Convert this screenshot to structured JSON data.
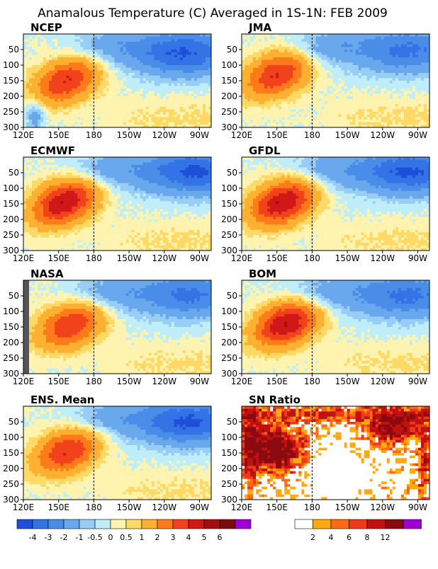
{
  "title": "Anamalous Temperature (C) Averaged in 1S-1N: FEB 2009",
  "colors": {
    "anom": [
      "#1f4fd8",
      "#3373e6",
      "#4a8de8",
      "#6aa8ee",
      "#98cdf5",
      "#bfeefa",
      "#fff3b0",
      "#ffd966",
      "#ffb030",
      "#ff7a18",
      "#f2421c",
      "#d01818",
      "#a30d10",
      "#7c0a0a",
      "#a000d8"
    ],
    "ratio": [
      "#ffffff",
      "#ffaa10",
      "#ff6a12",
      "#ee3a18",
      "#c01010",
      "#8a0a10",
      "#a000d0"
    ],
    "frame": "#000000",
    "dateline": "#000000",
    "undefined": "#555555"
  },
  "chart_data": [
    {
      "type": "heatmap",
      "title": "NCEP",
      "x": [
        "120E",
        "150E",
        "180",
        "150W",
        "120W",
        "90W"
      ],
      "y": [
        50,
        100,
        150,
        200,
        250,
        300
      ],
      "ylim": [
        300,
        0
      ],
      "features": [
        {
          "kind": "warm-core",
          "lon": 157,
          "depth": 150,
          "peak": 4
        },
        {
          "kind": "cold",
          "lon": 255,
          "depth": 70,
          "value": -3
        },
        {
          "kind": "cold-deep",
          "lon": 130,
          "depth": 260,
          "value": -1
        }
      ]
    },
    {
      "type": "heatmap",
      "title": "JMA",
      "x": [
        "120E",
        "150E",
        "180",
        "150W",
        "120W",
        "90W"
      ],
      "y": [
        50,
        100,
        150,
        200,
        250,
        300
      ],
      "ylim": [
        300,
        0
      ],
      "features": [
        {
          "kind": "warm-core",
          "lon": 150,
          "depth": 130,
          "peak": 4
        },
        {
          "kind": "cold",
          "lon": 260,
          "depth": 60,
          "value": -2
        }
      ]
    },
    {
      "type": "heatmap",
      "title": "ECMWF",
      "x": [
        "120E",
        "150E",
        "180",
        "150W",
        "120W",
        "90W"
      ],
      "y": [
        50,
        100,
        150,
        200,
        250,
        300
      ],
      "ylim": [
        300,
        0
      ],
      "features": [
        {
          "kind": "warm-core",
          "lon": 155,
          "depth": 145,
          "peak": 5
        },
        {
          "kind": "cold",
          "lon": 265,
          "depth": 50,
          "value": -3
        }
      ]
    },
    {
      "type": "heatmap",
      "title": "GFDL",
      "x": [
        "120E",
        "150E",
        "180",
        "150W",
        "120W",
        "90W"
      ],
      "y": [
        50,
        100,
        150,
        200,
        250,
        300
      ],
      "ylim": [
        300,
        0
      ],
      "features": [
        {
          "kind": "warm-core",
          "lon": 155,
          "depth": 145,
          "peak": 5
        },
        {
          "kind": "cold",
          "lon": 262,
          "depth": 50,
          "value": -3
        }
      ]
    },
    {
      "type": "heatmap",
      "title": "NASA",
      "x": [
        "120E",
        "150E",
        "180",
        "150W",
        "120W",
        "90W"
      ],
      "y": [
        50,
        100,
        150,
        200,
        250,
        300
      ],
      "ylim": [
        300,
        0
      ],
      "features": [
        {
          "kind": "warm-core",
          "lon": 160,
          "depth": 145,
          "peak": 4
        },
        {
          "kind": "cold",
          "lon": 260,
          "depth": 50,
          "value": -2
        }
      ]
    },
    {
      "type": "heatmap",
      "title": "BOM",
      "x": [
        "120E",
        "150E",
        "180",
        "150W",
        "120W",
        "90W"
      ],
      "y": [
        50,
        100,
        150,
        200,
        250,
        300
      ],
      "ylim": [
        300,
        0
      ],
      "features": [
        {
          "kind": "warm-core",
          "lon": 158,
          "depth": 140,
          "peak": 5
        },
        {
          "kind": "cold",
          "lon": 260,
          "depth": 55,
          "value": -2
        }
      ]
    },
    {
      "type": "heatmap",
      "title": "ENS. Mean",
      "x": [
        "120E",
        "150E",
        "180",
        "150W",
        "120W",
        "90W"
      ],
      "y": [
        50,
        100,
        150,
        200,
        250,
        300
      ],
      "ylim": [
        300,
        0
      ],
      "features": [
        {
          "kind": "warm-core",
          "lon": 157,
          "depth": 145,
          "peak": 4
        },
        {
          "kind": "cold",
          "lon": 260,
          "depth": 55,
          "value": -3
        }
      ]
    },
    {
      "type": "heatmap",
      "title": "SN Ratio",
      "x": [
        "120E",
        "150E",
        "180",
        "150W",
        "120W",
        "90W"
      ],
      "y": [
        50,
        100,
        150,
        200,
        250,
        300
      ],
      "ylim": [
        300,
        0
      ],
      "features": [
        {
          "kind": "high-ratio",
          "lon": 150,
          "depth": 150,
          "value": 12
        },
        {
          "kind": "high-ratio",
          "lon": 250,
          "depth": 70,
          "value": 12
        }
      ]
    }
  ],
  "legend_anom": {
    "labels": [
      "-4",
      "-3",
      "-2",
      "-1",
      "-0.5",
      "0",
      "0.5",
      "1",
      "2",
      "3",
      "4",
      "5",
      "6"
    ]
  },
  "legend_ratio": {
    "labels": [
      "2",
      "4",
      "6",
      "8",
      "12"
    ]
  }
}
